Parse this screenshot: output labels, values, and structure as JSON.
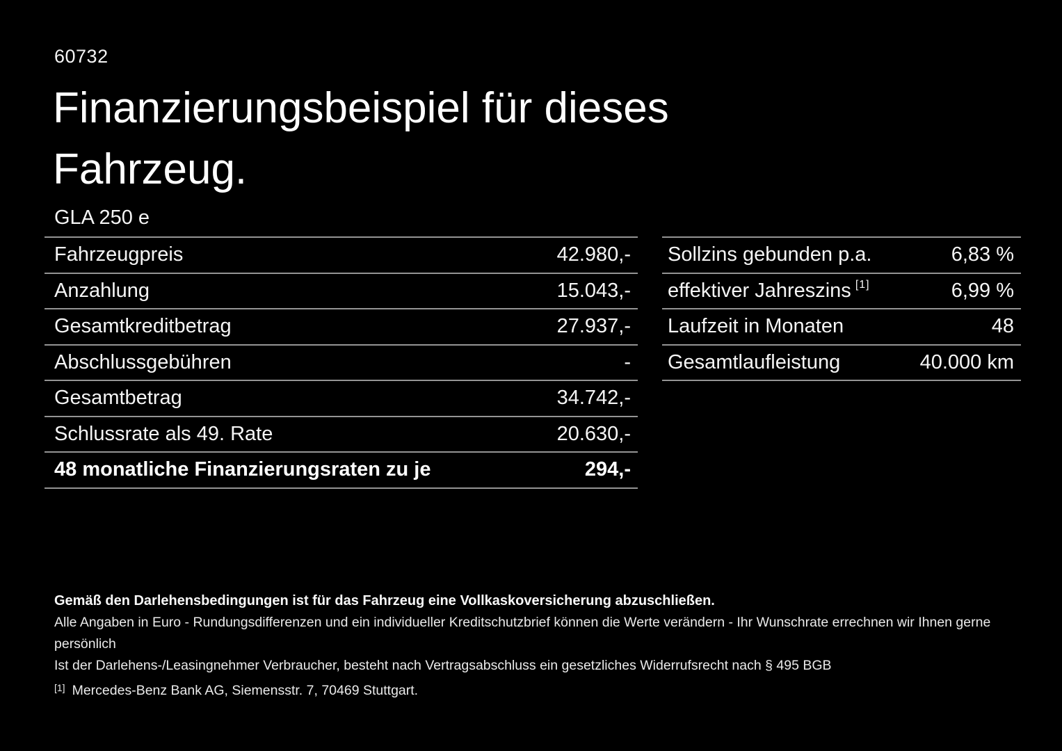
{
  "page": {
    "id_number": "60732",
    "title_line1": "Finanzierungsbeispiel für dieses",
    "title_line2": "Fahrzeug.",
    "model": "GLA 250 e"
  },
  "colors": {
    "background": "#000000",
    "text": "#fafafa",
    "divider": "#949494"
  },
  "left_table": {
    "rows": [
      {
        "label": "Fahrzeugpreis",
        "value": "42.980,-"
      },
      {
        "label": "Anzahlung",
        "value": "15.043,-"
      },
      {
        "label": "Gesamtkreditbetrag",
        "value": "27.937,-"
      },
      {
        "label": "Abschlussgebühren",
        "value": "-"
      },
      {
        "label": "Gesamtbetrag",
        "value": "34.742,-"
      },
      {
        "label": "Schlussrate als 49. Rate",
        "value": "20.630,-"
      },
      {
        "label": "48 monatliche Finanzierungsraten zu je",
        "value": "294,-"
      }
    ]
  },
  "right_table": {
    "rows": [
      {
        "label": "Sollzins gebunden p.a.",
        "sup": "",
        "value": "6,83 %"
      },
      {
        "label": "effektiver Jahreszins",
        "sup": "[1]",
        "value": "6,99 %"
      },
      {
        "label": "Laufzeit in Monaten",
        "sup": "",
        "value": "48"
      },
      {
        "label": "Gesamtlaufleistung",
        "sup": "",
        "value": "40.000 km"
      }
    ]
  },
  "footnotes": {
    "line1": "Gemäß den Darlehensbedingungen ist für das Fahrzeug eine Vollkaskoversicherung abzuschließen.",
    "line2": "Alle Angaben in Euro - Rundungsdifferenzen und ein individueller Kreditschutzbrief können die Werte verändern - Ihr Wunschrate errechnen wir Ihnen gerne persönlich",
    "line3": "Ist der Darlehens-/Leasingnehmer Verbraucher, besteht nach Vertragsabschluss ein gesetzliches Widerrufsrecht nach § 495 BGB",
    "footnote_marker": "[1]",
    "footnote_text": "Mercedes-Benz Bank AG, Siemensstr. 7, 70469 Stuttgart."
  }
}
